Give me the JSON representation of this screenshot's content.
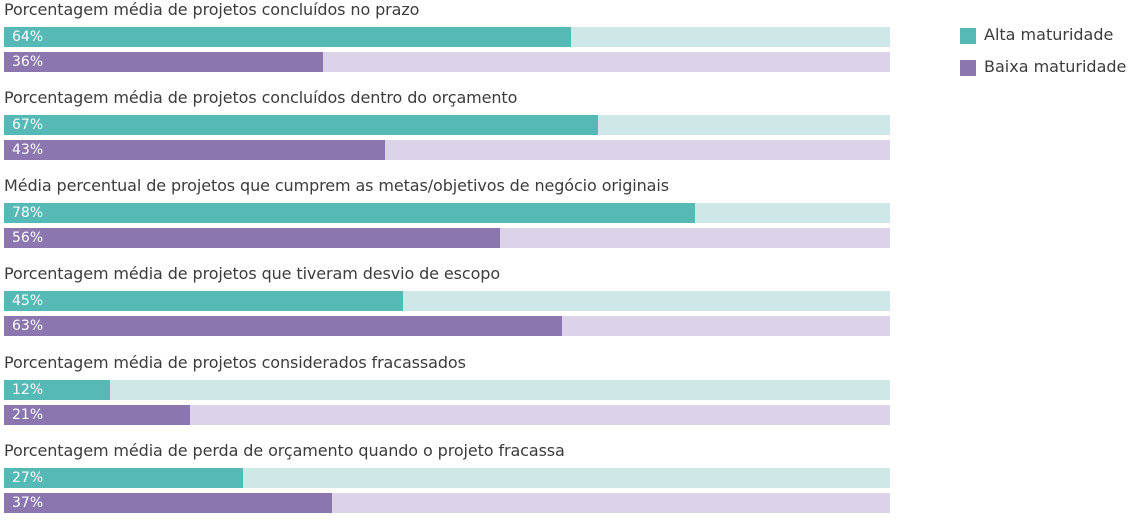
{
  "chart_data": {
    "type": "bar",
    "orientation": "horizontal",
    "title": "",
    "xlabel": "",
    "ylabel": "",
    "xlim": [
      0,
      100
    ],
    "categories": [
      "Porcentagem média de projetos concluídos no prazo",
      "Porcentagem média de projetos concluídos dentro do orçamento",
      "Média percentual de projetos que cumprem as metas/objetivos de negócio originais",
      "Porcentagem média de projetos que tiveram desvio de escopo",
      "Porcentagem média de projetos considerados fracassados",
      "Porcentagem média de perda de orçamento quando o projeto fracassa"
    ],
    "series": [
      {
        "name": "Alta maturidade",
        "color": "#55bab5",
        "track_color": "#cde8e7",
        "values": [
          64,
          67,
          78,
          45,
          12,
          27
        ]
      },
      {
        "name": "Baixa maturidade",
        "color": "#8b76b0",
        "track_color": "#dcd3e8",
        "values": [
          36,
          43,
          56,
          63,
          21,
          37
        ]
      }
    ],
    "value_suffix": "%",
    "grid": false,
    "legend_position": "top-right"
  }
}
